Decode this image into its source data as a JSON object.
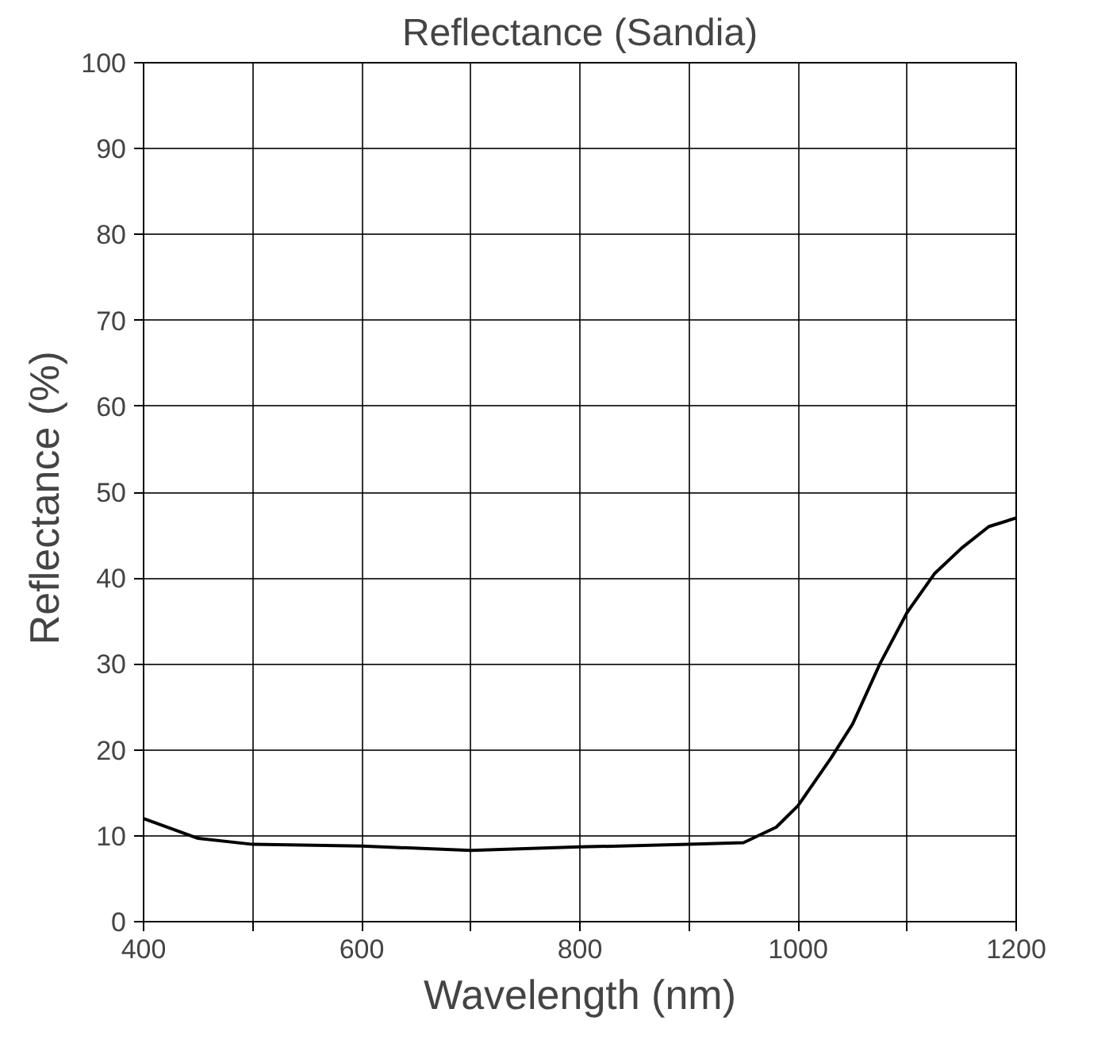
{
  "chart_data": {
    "type": "line",
    "title": "Reflectance (Sandia)",
    "xlabel": "Wavelength (nm)",
    "ylabel": "Reflectance  (%)",
    "x": [
      400,
      450,
      500,
      600,
      700,
      800,
      900,
      950,
      980,
      1000,
      1030,
      1050,
      1075,
      1100,
      1125,
      1150,
      1175,
      1200
    ],
    "series": [
      {
        "color": "#000000",
        "values": [
          12,
          9.7,
          9,
          8.8,
          8.3,
          8.7,
          9,
          9.2,
          11,
          13.5,
          19,
          23,
          30,
          36,
          40.5,
          43.5,
          46,
          47
        ]
      }
    ],
    "xlim": [
      400,
      1200
    ],
    "ylim": [
      0,
      100
    ],
    "xticks": [
      400,
      {
        "value": 500,
        "label": null
      },
      600,
      {
        "value": 700,
        "label": null
      },
      800,
      {
        "value": 900,
        "label": null
      },
      1000,
      {
        "value": 1100,
        "label": null
      },
      1200
    ],
    "yticks": [
      0,
      10,
      20,
      30,
      40,
      50,
      60,
      70,
      80,
      90,
      100
    ],
    "grid": true,
    "line_style": "solid"
  }
}
